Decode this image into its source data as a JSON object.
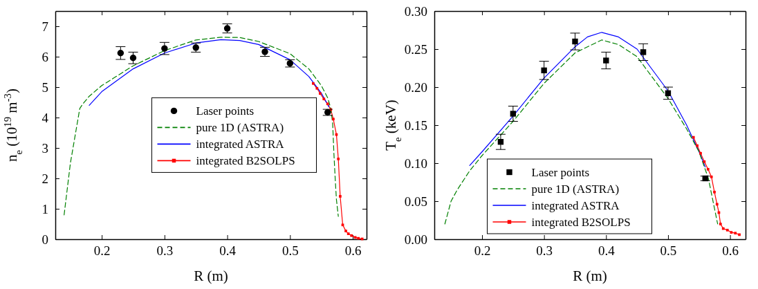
{
  "chart_data": [
    {
      "type": "line",
      "xlabel": "R (m)",
      "ylabel": "n$_{e}$ (10$^{19}$ m$^{-3}$)",
      "xlim": [
        0.126,
        0.622
      ],
      "ylim": [
        0,
        7.5
      ],
      "xticks": [
        0.2,
        0.3,
        0.4,
        0.5,
        0.6
      ],
      "yticks": [
        0,
        1,
        2,
        3,
        4,
        5,
        6,
        7
      ],
      "grid": false,
      "legend": "center",
      "series": [
        {
          "name": "Laser points",
          "type": "scatter",
          "color": "#000000",
          "marker": "circle",
          "x": [
            0.23,
            0.25,
            0.3,
            0.35,
            0.4,
            0.46,
            0.5,
            0.56
          ],
          "values": [
            6.12,
            5.96,
            6.27,
            6.3,
            6.93,
            6.16,
            5.78,
            4.17
          ],
          "errors": [
            0.21,
            0.19,
            0.2,
            0.15,
            0.15,
            0.15,
            0.12,
            0.1
          ]
        },
        {
          "name": "pure 1D (ASTRA)",
          "color": "#008000",
          "line_style": "dashed",
          "marker": "none",
          "x": [
            0.14,
            0.15,
            0.16,
            0.165,
            0.17,
            0.18,
            0.2,
            0.25,
            0.3,
            0.35,
            0.39,
            0.42,
            0.45,
            0.5,
            0.53,
            0.55,
            0.56,
            0.565,
            0.568,
            0.57,
            0.572,
            0.574,
            0.577
          ],
          "values": [
            0.8,
            2.5,
            3.7,
            4.3,
            4.45,
            4.7,
            5.05,
            5.7,
            6.2,
            6.55,
            6.64,
            6.63,
            6.5,
            6.1,
            5.6,
            5.05,
            4.65,
            4.3,
            3.8,
            2.8,
            2.0,
            1.3,
            0.75
          ]
        },
        {
          "name": "integrated ASTRA",
          "color": "#0000ff",
          "line_style": "solid",
          "marker": "none",
          "x": [
            0.18,
            0.2,
            0.25,
            0.3,
            0.35,
            0.39,
            0.42,
            0.45,
            0.5,
            0.53,
            0.55,
            0.562
          ],
          "values": [
            4.4,
            4.85,
            5.6,
            6.12,
            6.45,
            6.56,
            6.53,
            6.4,
            5.9,
            5.35,
            4.8,
            4.35
          ]
        },
        {
          "name": "integrated B2SOLPS",
          "color": "#ff0000",
          "line_style": "solid",
          "marker": "square",
          "x": [
            0.537,
            0.543,
            0.548,
            0.554,
            0.56,
            0.565,
            0.569,
            0.574,
            0.577,
            0.58,
            0.584,
            0.589,
            0.593,
            0.598,
            0.604,
            0.609,
            0.615
          ],
          "values": [
            5.12,
            4.96,
            4.79,
            4.61,
            4.45,
            4.26,
            3.95,
            3.44,
            2.64,
            1.41,
            0.47,
            0.27,
            0.18,
            0.12,
            0.06,
            0.03,
            0.01
          ]
        }
      ]
    },
    {
      "type": "line",
      "xlabel": "R (m)",
      "ylabel": "T$_{e}$ (keV)",
      "xlim": [
        0.123,
        0.625
      ],
      "ylim": [
        0,
        0.3
      ],
      "xticks": [
        0.2,
        0.3,
        0.4,
        0.5,
        0.6
      ],
      "yticks": [
        {
          "value": 0,
          "label": "0.00"
        },
        0.05,
        {
          "value": 0.1,
          "label": "0.10"
        },
        0.15,
        {
          "value": 0.2,
          "label": "0.20"
        },
        0.25,
        {
          "value": 0.3,
          "label": "0.30"
        }
      ],
      "grid": false,
      "legend": "bottom",
      "series": [
        {
          "name": "Laser points",
          "type": "scatter",
          "color": "#000000",
          "marker": "square",
          "x": [
            0.23,
            0.25,
            0.3,
            0.35,
            0.4,
            0.46,
            0.5,
            0.56
          ],
          "values": [
            0.128,
            0.165,
            0.222,
            0.26,
            0.235,
            0.246,
            0.192,
            0.08
          ],
          "errors": [
            0.01,
            0.01,
            0.012,
            0.011,
            0.011,
            0.011,
            0.008,
            0.003
          ]
        },
        {
          "name": "pure 1D (ASTRA)",
          "color": "#008000",
          "line_style": "dashed",
          "marker": "none",
          "x": [
            0.14,
            0.15,
            0.16,
            0.18,
            0.2,
            0.25,
            0.3,
            0.35,
            0.393,
            0.42,
            0.45,
            0.5,
            0.53,
            0.55,
            0.565,
            0.575,
            0.58
          ],
          "values": [
            0.02,
            0.05,
            0.065,
            0.09,
            0.11,
            0.155,
            0.205,
            0.245,
            0.262,
            0.256,
            0.24,
            0.185,
            0.145,
            0.115,
            0.08,
            0.04,
            0.02
          ]
        },
        {
          "name": "integrated ASTRA",
          "color": "#0000ff",
          "line_style": "solid",
          "marker": "none",
          "x": [
            0.18,
            0.2,
            0.25,
            0.3,
            0.35,
            0.37,
            0.393,
            0.42,
            0.45,
            0.5,
            0.53,
            0.55,
            0.56
          ],
          "values": [
            0.097,
            0.115,
            0.162,
            0.212,
            0.253,
            0.266,
            0.272,
            0.266,
            0.25,
            0.195,
            0.15,
            0.115,
            0.095
          ]
        },
        {
          "name": "integrated B2SOLPS",
          "color": "#ff0000",
          "line_style": "solid",
          "marker": "square",
          "x": [
            0.541,
            0.547,
            0.5525,
            0.5585,
            0.5645,
            0.57,
            0.5748,
            0.579,
            0.582,
            0.5846,
            0.589,
            0.5957,
            0.602,
            0.6085,
            0.615
          ],
          "values": [
            0.134,
            0.123,
            0.113,
            0.102,
            0.092,
            0.082,
            0.062,
            0.046,
            0.035,
            0.02,
            0.014,
            0.012,
            0.009,
            0.008,
            0.006
          ]
        }
      ]
    }
  ]
}
